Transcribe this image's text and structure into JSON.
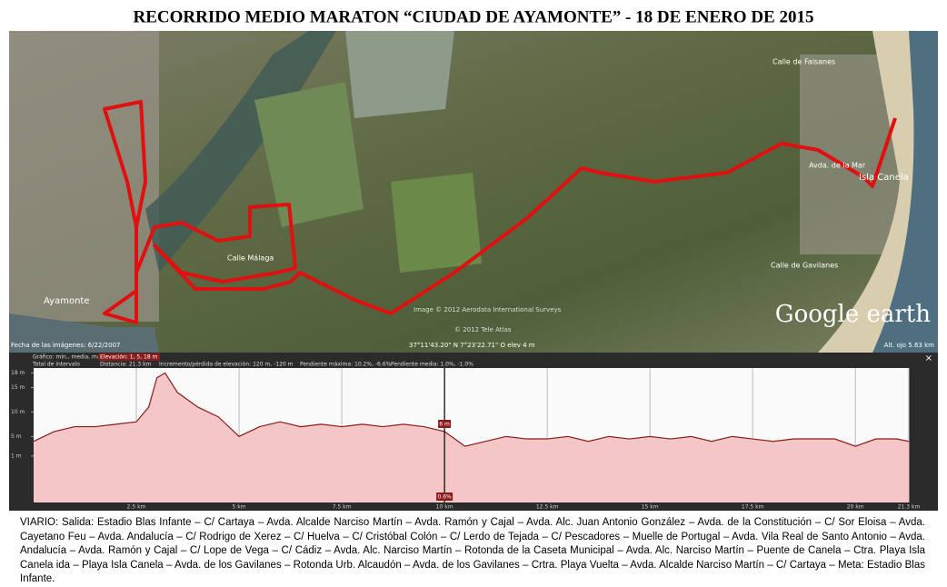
{
  "title": "RECORRIDO MEDIO MARATON “CIUDAD DE AYAMONTE” -  18 DE ENERO DE 2015",
  "map": {
    "labels": {
      "ayamonte": "Ayamonte",
      "isla_canela": "Isla Canela",
      "faisanes": "Calle de Faisanes",
      "avda_mar": "Avda. de la Mar",
      "malaga": "Calle Málaga",
      "gavilanes": "Calle de Gavilanes"
    },
    "brand": "Google earth",
    "date": "Fecha de las imágenes: 6/22/2007",
    "copyright": "Image © 2012 Aerodata International Surveys",
    "tele_atlas": "© 2012 Tele Atlas",
    "coords": "37°11'43.20\" N  7°23'22.71\" O  elev  4 m",
    "eye_alt": "Alt. ojo  5.63 km"
  },
  "profile_header": {
    "graph": "Gráfico: mín., media, máx",
    "elevation": "Elevación: 1, 5, 18 m",
    "interval": "Total de intervalo",
    "distance": "Distancia: 21.3 km",
    "gain": "Incremento/pérdida de elevación: 120 m, -120 m",
    "max_slope": "Pendiente máxima: 10.2%, -6.6%",
    "mean_slope": "Pendiente media: 1.0%, -1.0%",
    "close": "×"
  },
  "chart_data": {
    "type": "area",
    "color": "#8a1c1c",
    "fill": "#f4c6c6",
    "x": [
      0,
      0.5,
      1,
      1.5,
      2,
      2.5,
      2.8,
      3,
      3.2,
      3.5,
      4,
      4.5,
      5,
      5.5,
      6,
      6.5,
      7,
      7.5,
      8,
      8.5,
      9,
      9.5,
      10,
      10.5,
      11,
      11.5,
      12,
      12.5,
      13,
      13.5,
      14,
      14.5,
      15,
      15.5,
      16,
      16.5,
      17,
      17.5,
      18,
      18.5,
      19,
      19.5,
      20,
      20.5,
      21,
      21.3
    ],
    "values": [
      4,
      6,
      7,
      7,
      7.5,
      8,
      11,
      17,
      18,
      14,
      11,
      9,
      5,
      7,
      8,
      7,
      7.5,
      7,
      7.5,
      7,
      7.5,
      7,
      6,
      3,
      4,
      5,
      4.5,
      4.5,
      5,
      4,
      5,
      4.5,
      5,
      4.5,
      5,
      4,
      5,
      4.5,
      4,
      4.5,
      4.5,
      4.5,
      3,
      4.5,
      4.5,
      4
    ],
    "xlim": [
      0,
      21.3
    ],
    "ylim": [
      -8.5,
      19
    ],
    "xticks": [
      {
        "value": 2.5,
        "label": "2.5 km"
      },
      {
        "value": 5,
        "label": "5 km"
      },
      {
        "value": 7.5,
        "label": "7.5 km"
      },
      {
        "value": 10,
        "label": "10 km"
      },
      {
        "value": 12.5,
        "label": "12.5 km"
      },
      {
        "value": 15,
        "label": "15 km"
      },
      {
        "value": 17.5,
        "label": "17.5 km"
      },
      {
        "value": 20,
        "label": "20 km"
      },
      {
        "value": 21.3,
        "label": "21.3 km"
      }
    ],
    "yticks": [
      {
        "value": 1,
        "label": "1 m"
      },
      {
        "value": 5,
        "label": "5 m"
      },
      {
        "value": 10,
        "label": "10 m"
      },
      {
        "value": 15,
        "label": "15 m"
      },
      {
        "value": 18,
        "label": "18 m"
      }
    ],
    "cursor": {
      "x": 10,
      "elevation_label": "6 m",
      "slope_label": "0.6%"
    }
  },
  "description": "VIARIO: Salida: Estadio Blas Infante – C/ Cartaya – Avda. Alcalde Narciso Martín – Avda. Ramón y Cajal – Avda. Alc. Juan Antonio González – Avda. de la Constitución – C/ Sor Eloisa – Avda. Cayetano Feu – Avda. Andalucía – C/ Rodrigo de Xerez – C/ Huelva – C/ Cristóbal Colón – C/ Lerdo de Tejada – C/ Pescadores – Muelle de Portugal – Avda. Vila Real de Santo Antonio – Avda. Andalucía – Avda. Ramón y Cajal – C/ Lope de Vega – C/ Cádiz – Avda. Alc. Narciso Martín – Rotonda de la Caseta Municipal – Avda. Alc. Narciso Martín – Puente de Canela – Ctra. Playa Isla Canela ida – Playa Isla Canela – Avda. de los Gavilanes – Rotonda Urb. Alcaudón – Avda. de los Gavilanes – Crtra. Playa Vuelta – Avda. Alcalde Narciso Martín – C/ Cartaya – Meta: Estadio Blas Infante."
}
